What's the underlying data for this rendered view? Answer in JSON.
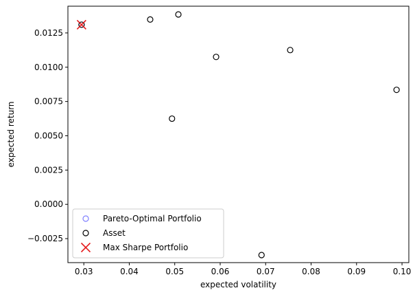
{
  "chart_data": {
    "type": "scatter",
    "title": "",
    "xlabel": "expected volatility",
    "ylabel": "expected return",
    "xlim": [
      0.0265,
      0.1015
    ],
    "ylim": [
      -0.00425,
      0.01445
    ],
    "xticks": [
      0.03,
      0.04,
      0.05,
      0.06,
      0.07,
      0.08,
      0.09,
      0.1
    ],
    "xtick_labels": [
      "0.03",
      "0.04",
      "0.05",
      "0.06",
      "0.07",
      "0.08",
      "0.09",
      "0.10"
    ],
    "yticks": [
      -0.0025,
      0.0,
      0.0025,
      0.005,
      0.0075,
      0.01,
      0.0125
    ],
    "ytick_labels": [
      "−0.0025",
      "0.0000",
      "0.0025",
      "0.0050",
      "0.0075",
      "0.0100",
      "0.0125"
    ],
    "grid": false,
    "legend_position": "lower-left",
    "series": [
      {
        "name": "Pareto-Optimal Portfolio",
        "marker": "open-circle",
        "color": "#8080ff",
        "x": [
          0.0295
        ],
        "y": [
          0.0131
        ]
      },
      {
        "name": "Asset",
        "marker": "open-circle",
        "color": "#000000",
        "x": [
          0.0295,
          0.0446,
          0.0494,
          0.0508,
          0.0591,
          0.0691,
          0.0754,
          0.0988
        ],
        "y": [
          0.0131,
          0.01348,
          0.00625,
          0.01385,
          0.01075,
          -0.0037,
          0.01125,
          0.00835
        ]
      },
      {
        "name": "Max Sharpe Portfolio",
        "marker": "x",
        "color": "#e41a1c",
        "x": [
          0.0295
        ],
        "y": [
          0.0131
        ]
      }
    ]
  }
}
